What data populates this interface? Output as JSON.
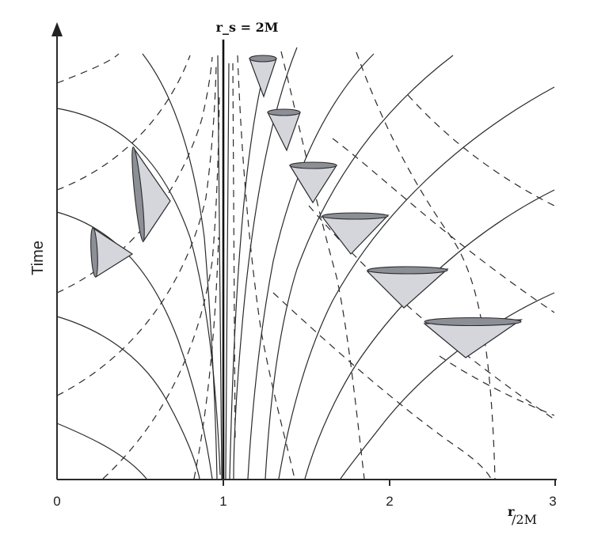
{
  "horizon_label": "r_s = 2M",
  "axes": {
    "ylabel": "Time",
    "xlabel_sup": "r",
    "xlabel_sub": "/2M",
    "x_ticks": [
      "0",
      "1",
      "2",
      "3"
    ]
  },
  "colors": {
    "lines": "#2a2a2a",
    "cone_fill": "#d4d6dc",
    "cone_cap": "#8c8f96"
  }
}
